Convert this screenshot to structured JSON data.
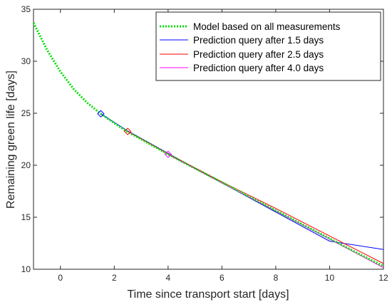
{
  "chart_data": {
    "type": "line",
    "title": "",
    "xlabel": "Time since transport start [days]",
    "ylabel": "Remaining green life [days]",
    "xlim": [
      -1,
      12
    ],
    "ylim": [
      10,
      35
    ],
    "xticks": [
      0,
      2,
      4,
      6,
      8,
      10,
      12
    ],
    "yticks": [
      10,
      15,
      20,
      25,
      30,
      35
    ],
    "grid": false,
    "legend_position": "top-right",
    "series": [
      {
        "name": "Model based on all measurements",
        "color": "#00e000",
        "style": "dotted",
        "x": [
          -1,
          -0.5,
          0,
          0.5,
          1,
          1.5,
          2,
          2.5,
          3,
          4,
          5,
          6,
          7,
          8,
          9,
          10,
          11,
          12
        ],
        "y": [
          33.7,
          31.1,
          29.0,
          27.3,
          26.0,
          24.95,
          24.05,
          23.2,
          22.5,
          21.05,
          19.7,
          18.35,
          17.0,
          15.65,
          14.3,
          12.95,
          11.6,
          10.3
        ]
      },
      {
        "name": "Prediction query after 1.5 days",
        "color": "#0000ff",
        "style": "solid",
        "x": [
          1.5,
          2.5,
          4,
          6,
          8,
          10,
          12
        ],
        "y": [
          24.95,
          23.3,
          21.15,
          18.3,
          15.5,
          12.7,
          11.9
        ]
      },
      {
        "name": "Prediction query after 2.5 days",
        "color": "#ff0000",
        "style": "solid",
        "x": [
          2.5,
          4,
          6,
          8,
          10,
          12
        ],
        "y": [
          23.25,
          21.1,
          18.4,
          15.85,
          13.2,
          10.55
        ]
      },
      {
        "name": "Prediction query after 4.0 days",
        "color": "#ff00ff",
        "style": "solid",
        "x": [
          4,
          6,
          8,
          10,
          12
        ],
        "y": [
          21.05,
          18.3,
          15.6,
          12.9,
          10.15
        ]
      }
    ],
    "markers": [
      {
        "x": 1.5,
        "y": 24.95,
        "color": "#0000ff",
        "shape": "diamond"
      },
      {
        "x": 2.5,
        "y": 23.25,
        "color": "#ff0000",
        "shape": "diamond"
      },
      {
        "x": 4.0,
        "y": 21.05,
        "color": "#ff00ff",
        "shape": "diamond"
      }
    ]
  }
}
